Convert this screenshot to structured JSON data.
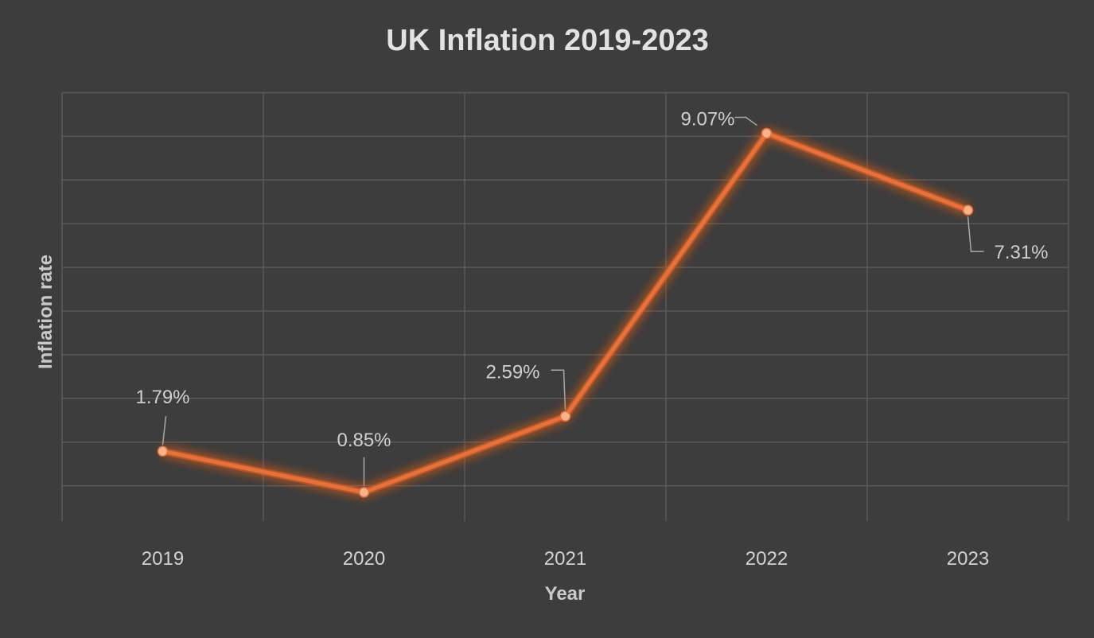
{
  "chart_data": {
    "type": "line",
    "title": "UK Inflation 2019-2023",
    "xlabel": "Year",
    "ylabel": "Inflation rate",
    "categories": [
      "2019",
      "2020",
      "2021",
      "2022",
      "2023"
    ],
    "series": [
      {
        "values": [
          1.79,
          0.85,
          2.59,
          9.07,
          7.31
        ],
        "data_labels": [
          "1.79%",
          "0.85%",
          "2.59%",
          "9.07%",
          "7.31%"
        ]
      }
    ],
    "ylim": [
      0,
      10
    ],
    "y_tick_labels_shown": false,
    "grid": true,
    "legend": "none",
    "colors": {
      "background": "#3d3d3d",
      "line": "#e8703a",
      "marker": "#f6b48d",
      "glow": "#e0601e",
      "grid": "#5a5a5a"
    }
  }
}
